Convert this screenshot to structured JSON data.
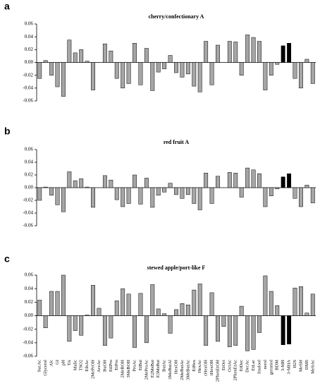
{
  "chart_data": [
    {
      "type": "bar",
      "panel": "a",
      "title": "cherry/confectionary A",
      "values": [
        -0.025,
        0.003,
        -0.02,
        -0.038,
        -0.053,
        0.035,
        0.015,
        0.02,
        0.002,
        -0.043,
        0.0,
        0.029,
        0.018,
        -0.025,
        -0.04,
        -0.033,
        0.03,
        -0.035,
        0.022,
        -0.044,
        -0.015,
        -0.01,
        0.011,
        -0.016,
        -0.023,
        -0.018,
        -0.037,
        -0.046,
        0.033,
        -0.035,
        0.027,
        0.0,
        0.033,
        0.032,
        -0.02,
        0.043,
        0.039,
        0.033,
        -0.043,
        -0.02,
        -0.003,
        0.026,
        0.03,
        -0.025,
        -0.04,
        0.005,
        -0.033
      ],
      "colors": [
        "#a6a6a6",
        "#a6a6a6",
        "#a6a6a6",
        "#a6a6a6",
        "#a6a6a6",
        "#a6a6a6",
        "#a6a6a6",
        "#a6a6a6",
        "#a6a6a6",
        "#a6a6a6",
        "#a6a6a6",
        "#a6a6a6",
        "#a6a6a6",
        "#a6a6a6",
        "#a6a6a6",
        "#a6a6a6",
        "#a6a6a6",
        "#a6a6a6",
        "#a6a6a6",
        "#a6a6a6",
        "#a6a6a6",
        "#a6a6a6",
        "#a6a6a6",
        "#a6a6a6",
        "#a6a6a6",
        "#a6a6a6",
        "#a6a6a6",
        "#a6a6a6",
        "#a6a6a6",
        "#a6a6a6",
        "#a6a6a6",
        "#a6a6a6",
        "#a6a6a6",
        "#a6a6a6",
        "#a6a6a6",
        "#a6a6a6",
        "#a6a6a6",
        "#a6a6a6",
        "#a6a6a6",
        "#a6a6a6",
        "#a6a6a6",
        "#000000",
        "#000000",
        "#a6a6a6",
        "#a6a6a6",
        "#a6a6a6",
        "#a6a6a6"
      ],
      "ylim": [
        -0.06,
        0.06
      ],
      "yticks": [
        -0.06,
        -0.04,
        -0.02,
        {
          "value": 0,
          "label": "0.00"
        },
        0.02,
        0.04,
        0.06
      ]
    },
    {
      "type": "bar",
      "panel": "b",
      "title": "red fruit A",
      "values": [
        -0.02,
        0.001,
        -0.012,
        -0.027,
        -0.038,
        0.025,
        0.011,
        0.014,
        0.001,
        -0.031,
        0.0,
        0.019,
        0.012,
        -0.019,
        -0.03,
        -0.025,
        0.02,
        -0.026,
        0.015,
        -0.031,
        -0.012,
        -0.007,
        0.007,
        -0.011,
        -0.017,
        -0.011,
        -0.025,
        -0.035,
        0.023,
        -0.025,
        0.018,
        0.0,
        0.024,
        0.023,
        -0.015,
        0.031,
        0.028,
        0.022,
        -0.03,
        -0.013,
        -0.002,
        0.017,
        0.022,
        -0.017,
        -0.03,
        0.004,
        -0.024
      ],
      "colors": [
        "#a6a6a6",
        "#a6a6a6",
        "#a6a6a6",
        "#a6a6a6",
        "#a6a6a6",
        "#a6a6a6",
        "#a6a6a6",
        "#a6a6a6",
        "#a6a6a6",
        "#a6a6a6",
        "#a6a6a6",
        "#a6a6a6",
        "#a6a6a6",
        "#a6a6a6",
        "#a6a6a6",
        "#a6a6a6",
        "#a6a6a6",
        "#a6a6a6",
        "#a6a6a6",
        "#a6a6a6",
        "#a6a6a6",
        "#a6a6a6",
        "#a6a6a6",
        "#a6a6a6",
        "#a6a6a6",
        "#a6a6a6",
        "#a6a6a6",
        "#a6a6a6",
        "#a6a6a6",
        "#a6a6a6",
        "#a6a6a6",
        "#a6a6a6",
        "#a6a6a6",
        "#a6a6a6",
        "#a6a6a6",
        "#a6a6a6",
        "#a6a6a6",
        "#a6a6a6",
        "#a6a6a6",
        "#a6a6a6",
        "#a6a6a6",
        "#000000",
        "#000000",
        "#a6a6a6",
        "#a6a6a6",
        "#a6a6a6",
        "#a6a6a6"
      ],
      "ylim": [
        -0.06,
        0.06
      ],
      "yticks": [
        -0.06,
        -0.04,
        -0.02,
        {
          "value": 0,
          "label": "0.00"
        },
        0.02,
        0.04,
        0.06
      ]
    },
    {
      "type": "bar",
      "panel": "c",
      "title": "stewed apple/port-like F",
      "categories": [
        "SucAc",
        "Glycerol",
        "Alc",
        "GI",
        "pH",
        "TA",
        "Malic",
        "TSO2",
        "EthAc",
        "2MePrOH",
        "AceAc",
        "BuOH",
        "EtIPro",
        "EtPro",
        "2MeBOH",
        "3MeBOH",
        "ProAc",
        "EtBut",
        "2MeProAc",
        "E2MeBut",
        "E3MeBut",
        "ButAc",
        "3MeButAl",
        "HexOH",
        "2MeButAc",
        "3MeButAc",
        "EtHex",
        "HexAc",
        "cHexOH",
        "tHexOH",
        "2PhenEtOH",
        "EtOct",
        "OctAc",
        "2PhenEtAc",
        "EtDec",
        "DecAc",
        "EtLac",
        "linalool",
        "nerol",
        "geraniol",
        "BDM",
        "3-MH",
        "3-MHA",
        "H2S",
        "MeSH",
        "DMS",
        "MeSAc"
      ],
      "values": [
        0.023,
        -0.018,
        0.036,
        0.036,
        0.06,
        -0.038,
        -0.022,
        -0.029,
        0.001,
        0.045,
        0.011,
        -0.044,
        -0.033,
        0.022,
        0.04,
        0.032,
        -0.047,
        0.033,
        -0.04,
        0.046,
        0.01,
        0.003,
        -0.026,
        0.009,
        0.018,
        0.016,
        0.038,
        0.047,
        -0.044,
        0.034,
        -0.038,
        -0.016,
        -0.046,
        -0.044,
        0.014,
        -0.052,
        -0.05,
        -0.025,
        0.059,
        0.036,
        0.015,
        -0.043,
        -0.042,
        0.041,
        0.043,
        0.004,
        0.032
      ],
      "colors": [
        "#a6a6a6",
        "#a6a6a6",
        "#a6a6a6",
        "#a6a6a6",
        "#a6a6a6",
        "#a6a6a6",
        "#a6a6a6",
        "#a6a6a6",
        "#a6a6a6",
        "#a6a6a6",
        "#a6a6a6",
        "#a6a6a6",
        "#a6a6a6",
        "#a6a6a6",
        "#a6a6a6",
        "#a6a6a6",
        "#a6a6a6",
        "#a6a6a6",
        "#a6a6a6",
        "#a6a6a6",
        "#a6a6a6",
        "#a6a6a6",
        "#a6a6a6",
        "#a6a6a6",
        "#a6a6a6",
        "#a6a6a6",
        "#a6a6a6",
        "#a6a6a6",
        "#a6a6a6",
        "#a6a6a6",
        "#a6a6a6",
        "#a6a6a6",
        "#a6a6a6",
        "#a6a6a6",
        "#a6a6a6",
        "#a6a6a6",
        "#a6a6a6",
        "#a6a6a6",
        "#a6a6a6",
        "#a6a6a6",
        "#a6a6a6",
        "#000000",
        "#000000",
        "#a6a6a6",
        "#a6a6a6",
        "#a6a6a6",
        "#a6a6a6"
      ],
      "ylim": [
        -0.06,
        0.06
      ],
      "yticks": [
        -0.06,
        -0.04,
        -0.02,
        {
          "value": 0,
          "label": "0.00"
        },
        0.02,
        0.04,
        0.06
      ]
    }
  ]
}
